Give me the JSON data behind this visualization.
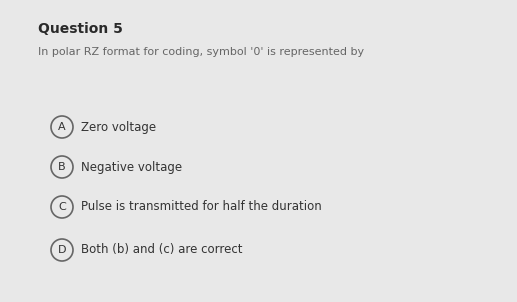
{
  "title": "Question 5",
  "question": "In polar RZ format for coding, symbol '0' is represented by",
  "options": [
    {
      "label": "A",
      "text": "Zero voltage"
    },
    {
      "label": "B",
      "text": "Negative voltage"
    },
    {
      "label": "C",
      "text": "Pulse is transmitted for half the duration"
    },
    {
      "label": "D",
      "text": "Both (b) and (c) are correct"
    }
  ],
  "bg_color": "#e8e8e8",
  "title_color": "#2a2a2a",
  "question_color": "#666666",
  "option_text_color": "#333333",
  "circle_edge_color": "#666666",
  "circle_face_color": "#e8e8e8",
  "title_fontsize": 10,
  "question_fontsize": 8,
  "option_fontsize": 8.5,
  "label_fontsize": 8
}
